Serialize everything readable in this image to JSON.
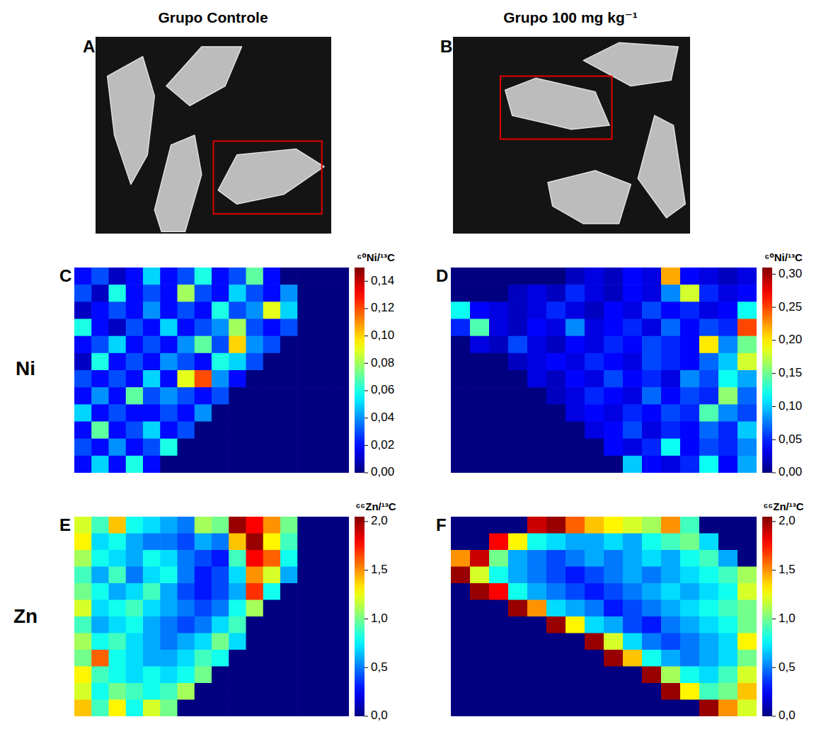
{
  "column_titles": [
    "Grupo Controle",
    "Grupo 100 mg kg⁻¹"
  ],
  "row_labels": [
    "Ni",
    "Zn"
  ],
  "photos": [
    {
      "label": "A"
    },
    {
      "label": "B"
    }
  ],
  "chart_data": [
    {
      "type": "heatmap",
      "label": "C",
      "colorbar_title": "⁶⁰Ni/¹³C",
      "tick_labels": false,
      "zlim": [
        0,
        0.15
      ],
      "zticks": [
        {
          "value": 0,
          "label": "0,00"
        },
        {
          "value": 0.02,
          "label": "0,02"
        },
        {
          "value": 0.04,
          "label": "0,04"
        },
        {
          "value": 0.06,
          "label": "0,06"
        },
        {
          "value": 0.08,
          "label": "0,08"
        },
        {
          "value": 0.1,
          "label": "0,10"
        },
        {
          "value": 0.12,
          "label": "0,12"
        },
        {
          "value": 0.14,
          "label": "0,14"
        }
      ],
      "cells": [
        [
          0.02,
          0.03,
          0.01,
          0.02,
          0.05,
          0.02,
          0.03,
          0.06,
          0.02,
          0.03,
          0.07,
          0.02,
          0,
          0,
          0,
          0
        ],
        [
          0.03,
          0.01,
          0.06,
          0.02,
          0.03,
          0.02,
          0.08,
          0.03,
          0.02,
          0.05,
          0.03,
          0.02,
          0.04,
          0,
          0,
          0
        ],
        [
          0.01,
          0.02,
          0.03,
          0.02,
          0.04,
          0.02,
          0.03,
          0.02,
          0.06,
          0.03,
          0.04,
          0.09,
          0.05,
          0,
          0,
          0
        ],
        [
          0.06,
          0.02,
          0.01,
          0.03,
          0.02,
          0.05,
          0.02,
          0.03,
          0.04,
          0.08,
          0.03,
          0.02,
          0.03,
          0,
          0,
          0
        ],
        [
          0.02,
          0.03,
          0.05,
          0.02,
          0.03,
          0.02,
          0.04,
          0.07,
          0.03,
          0.1,
          0.04,
          0.03,
          0,
          0,
          0,
          0
        ],
        [
          0.01,
          0.06,
          0.02,
          0.03,
          0.02,
          0.04,
          0.03,
          0.02,
          0.06,
          0.05,
          0.03,
          0,
          0,
          0,
          0,
          0
        ],
        [
          0.03,
          0.02,
          0.03,
          0.02,
          0.05,
          0.02,
          0.09,
          0.12,
          0.04,
          0.02,
          0,
          0,
          0,
          0,
          0,
          0
        ],
        [
          0.02,
          0.04,
          0.02,
          0.07,
          0.03,
          0.04,
          0.03,
          0.02,
          0.03,
          0,
          0,
          0,
          0,
          0,
          0,
          0
        ],
        [
          0.05,
          0.02,
          0.03,
          0.02,
          0.02,
          0.03,
          0.02,
          0.04,
          0,
          0,
          0,
          0,
          0,
          0,
          0,
          0
        ],
        [
          0.02,
          0.07,
          0.02,
          0.03,
          0.05,
          0.02,
          0.03,
          0,
          0,
          0,
          0,
          0,
          0,
          0,
          0,
          0
        ],
        [
          0.03,
          0.02,
          0.04,
          0.02,
          0.03,
          0.06,
          0,
          0,
          0,
          0,
          0,
          0,
          0,
          0,
          0,
          0
        ],
        [
          0.02,
          0.05,
          0.02,
          0.06,
          0.02,
          0,
          0,
          0,
          0,
          0,
          0,
          0,
          0,
          0,
          0,
          0
        ]
      ]
    },
    {
      "type": "heatmap",
      "label": "D",
      "colorbar_title": "⁶⁰Ni/¹³C",
      "tick_labels": false,
      "zlim": [
        0,
        0.31
      ],
      "zticks": [
        {
          "value": 0,
          "label": "0,00"
        },
        {
          "value": 0.05,
          "label": "0,05"
        },
        {
          "value": 0.1,
          "label": "0,10"
        },
        {
          "value": 0.15,
          "label": "0,15"
        },
        {
          "value": 0.2,
          "label": "0,20"
        },
        {
          "value": 0.25,
          "label": "0,25"
        },
        {
          "value": 0.3,
          "label": "0,30"
        }
      ],
      "cells": [
        [
          0,
          0,
          0,
          0,
          0,
          0,
          0.02,
          0.03,
          0.02,
          0.04,
          0.03,
          0.22,
          0.04,
          0.03,
          0.02,
          0.03
        ],
        [
          0,
          0,
          0,
          0.02,
          0.03,
          0.02,
          0.05,
          0.03,
          0.02,
          0.04,
          0.03,
          0.08,
          0.18,
          0.05,
          0.03,
          0.04
        ],
        [
          0.12,
          0.04,
          0.03,
          0.02,
          0.03,
          0.05,
          0.03,
          0.02,
          0.04,
          0.03,
          0.06,
          0.04,
          0.05,
          0.03,
          0.04,
          0.12
        ],
        [
          0.05,
          0.14,
          0.03,
          0.02,
          0.04,
          0.03,
          0.08,
          0.03,
          0.04,
          0.05,
          0.03,
          0.07,
          0.04,
          0.06,
          0.05,
          0.25
        ],
        [
          0,
          0.03,
          0.02,
          0.06,
          0.03,
          0.02,
          0.04,
          0.03,
          0.05,
          0.04,
          0.06,
          0.05,
          0.04,
          0.2,
          0.08,
          0.15
        ],
        [
          0,
          0,
          0,
          0.02,
          0.03,
          0.04,
          0.03,
          0.05,
          0.04,
          0.03,
          0.06,
          0.05,
          0.04,
          0.07,
          0.1,
          0.18
        ],
        [
          0,
          0,
          0,
          0,
          0.03,
          0.02,
          0.04,
          0.03,
          0.06,
          0.04,
          0.05,
          0.03,
          0.08,
          0.06,
          0.12,
          0.09
        ],
        [
          0,
          0,
          0,
          0,
          0,
          0.02,
          0.03,
          0.05,
          0.04,
          0.03,
          0.07,
          0.04,
          0.06,
          0.05,
          0.16,
          0.07
        ],
        [
          0,
          0,
          0,
          0,
          0,
          0,
          0.03,
          0.04,
          0.03,
          0.05,
          0.04,
          0.06,
          0.05,
          0.14,
          0.08,
          0.06
        ],
        [
          0,
          0,
          0,
          0,
          0,
          0,
          0,
          0.03,
          0.04,
          0.06,
          0.03,
          0.05,
          0.04,
          0.07,
          0.05,
          0.1
        ],
        [
          0,
          0,
          0,
          0,
          0,
          0,
          0,
          0,
          0.04,
          0.03,
          0.05,
          0.12,
          0.04,
          0.06,
          0.05,
          0.08
        ],
        [
          0,
          0,
          0,
          0,
          0,
          0,
          0,
          0,
          0,
          0.1,
          0.04,
          0.03,
          0.05,
          0.12,
          0.04,
          0.09
        ]
      ]
    },
    {
      "type": "heatmap",
      "label": "E",
      "colorbar_title": "⁶⁶Zn/¹³C",
      "tick_labels": false,
      "zlim": [
        0,
        2.05
      ],
      "zticks": [
        {
          "value": 0,
          "label": "0,0"
        },
        {
          "value": 0.5,
          "label": "0,5"
        },
        {
          "value": 1,
          "label": "1,0"
        },
        {
          "value": 1.5,
          "label": "1,5"
        },
        {
          "value": 2,
          "label": "2,0"
        }
      ],
      "cells": [
        [
          1.2,
          0.9,
          1.4,
          0.8,
          0.7,
          0.6,
          0.5,
          1.1,
          1.0,
          2.0,
          1.8,
          1.5,
          1.0,
          0,
          0,
          0
        ],
        [
          1.3,
          0.7,
          0.8,
          0.6,
          0.5,
          0.5,
          0.4,
          0.6,
          0.5,
          1.4,
          2.0,
          1.3,
          0.9,
          0,
          0,
          0
        ],
        [
          1.1,
          0.8,
          0.7,
          0.6,
          0.8,
          0.7,
          0.5,
          0.4,
          0.3,
          0.9,
          1.8,
          1.6,
          0.8,
          0,
          0,
          0
        ],
        [
          0.9,
          0.6,
          0.9,
          0.5,
          0.7,
          0.8,
          0.5,
          0.3,
          0.4,
          0.7,
          1.5,
          1.2,
          0.6,
          0,
          0,
          0
        ],
        [
          1.0,
          0.8,
          0.6,
          0.7,
          0.9,
          0.6,
          0.4,
          0.3,
          0.4,
          0.6,
          1.7,
          0.8,
          0,
          0,
          0,
          0
        ],
        [
          1.2,
          0.7,
          0.8,
          0.9,
          0.7,
          0.6,
          0.5,
          0.4,
          0.5,
          0.8,
          1.1,
          0,
          0,
          0,
          0,
          0
        ],
        [
          0.9,
          0.6,
          0.7,
          0.8,
          0.6,
          0.5,
          0.4,
          0.5,
          0.7,
          0.9,
          0,
          0,
          0,
          0,
          0,
          0
        ],
        [
          1.1,
          0.8,
          0.9,
          0.7,
          0.6,
          0.5,
          0.6,
          0.7,
          1.0,
          0.7,
          0,
          0,
          0,
          0,
          0,
          0
        ],
        [
          1.0,
          1.6,
          0.8,
          0.7,
          0.6,
          0.6,
          0.7,
          0.9,
          0.8,
          0,
          0,
          0,
          0,
          0,
          0,
          0
        ],
        [
          1.3,
          0.9,
          0.8,
          0.7,
          0.8,
          0.7,
          0.8,
          1.0,
          0,
          0,
          0,
          0,
          0,
          0,
          0,
          0
        ],
        [
          1.2,
          0.8,
          1.0,
          0.9,
          0.8,
          0.9,
          1.1,
          0,
          0,
          0,
          0,
          0,
          0,
          0,
          0,
          0
        ],
        [
          1.4,
          0.9,
          1.3,
          0.8,
          1.2,
          1.0,
          0,
          0,
          0,
          0,
          0,
          0,
          0,
          0,
          0,
          0
        ]
      ]
    },
    {
      "type": "heatmap",
      "label": "F",
      "colorbar_title": "⁶⁶Zn/¹³C",
      "tick_labels": false,
      "zlim": [
        0,
        2.05
      ],
      "zticks": [
        {
          "value": 0,
          "label": "0,0"
        },
        {
          "value": 0.5,
          "label": "0,5"
        },
        {
          "value": 1,
          "label": "1,0"
        },
        {
          "value": 1.5,
          "label": "1,5"
        },
        {
          "value": 2,
          "label": "2,0"
        }
      ],
      "cells": [
        [
          0,
          0,
          0,
          0,
          1.9,
          2.0,
          1.6,
          1.4,
          1.3,
          1.2,
          1.1,
          1.5,
          0.9,
          0,
          0,
          0
        ],
        [
          0,
          0,
          1.8,
          1.3,
          0.8,
          0.7,
          0.6,
          0.6,
          0.7,
          0.6,
          0.8,
          0.9,
          1.0,
          0.7,
          0,
          0
        ],
        [
          1.5,
          1.9,
          1.0,
          0.6,
          0.5,
          0.4,
          0.5,
          0.6,
          0.5,
          0.6,
          0.7,
          0.6,
          0.8,
          0.9,
          0.6,
          0
        ],
        [
          2.0,
          1.2,
          0.8,
          0.6,
          0.5,
          0.4,
          0.3,
          0.4,
          0.5,
          0.6,
          0.5,
          0.6,
          0.7,
          0.8,
          0.9,
          1.1
        ],
        [
          0,
          2.0,
          1.8,
          0.8,
          0.6,
          0.5,
          0.4,
          0.3,
          0.4,
          0.5,
          0.6,
          0.7,
          0.6,
          0.7,
          0.8,
          1.2
        ],
        [
          0,
          0,
          0,
          2.0,
          1.5,
          0.7,
          0.6,
          0.5,
          0.3,
          0.4,
          0.5,
          0.6,
          0.7,
          0.8,
          0.9,
          1.0
        ],
        [
          0,
          0,
          0,
          0,
          0,
          2.0,
          1.3,
          0.7,
          0.6,
          0.4,
          0.3,
          0.5,
          0.6,
          0.7,
          0.8,
          1.0
        ],
        [
          0,
          0,
          0,
          0,
          0,
          0,
          0,
          2.0,
          1.2,
          0.7,
          0.5,
          0.4,
          0.5,
          0.6,
          0.7,
          1.3
        ],
        [
          0,
          0,
          0,
          0,
          0,
          0,
          0,
          0,
          2.0,
          1.4,
          0.8,
          0.6,
          0.5,
          0.6,
          0.7,
          1.0
        ],
        [
          0,
          0,
          0,
          0,
          0,
          0,
          0,
          0,
          0,
          0,
          2.0,
          1.1,
          0.8,
          0.7,
          0.9,
          1.2
        ],
        [
          0,
          0,
          0,
          0,
          0,
          0,
          0,
          0,
          0,
          0,
          0,
          2.0,
          1.3,
          0.9,
          1.0,
          1.4
        ],
        [
          0,
          0,
          0,
          0,
          0,
          0,
          0,
          0,
          0,
          0,
          0,
          0,
          0,
          2.0,
          1.5,
          1.2
        ]
      ]
    }
  ]
}
